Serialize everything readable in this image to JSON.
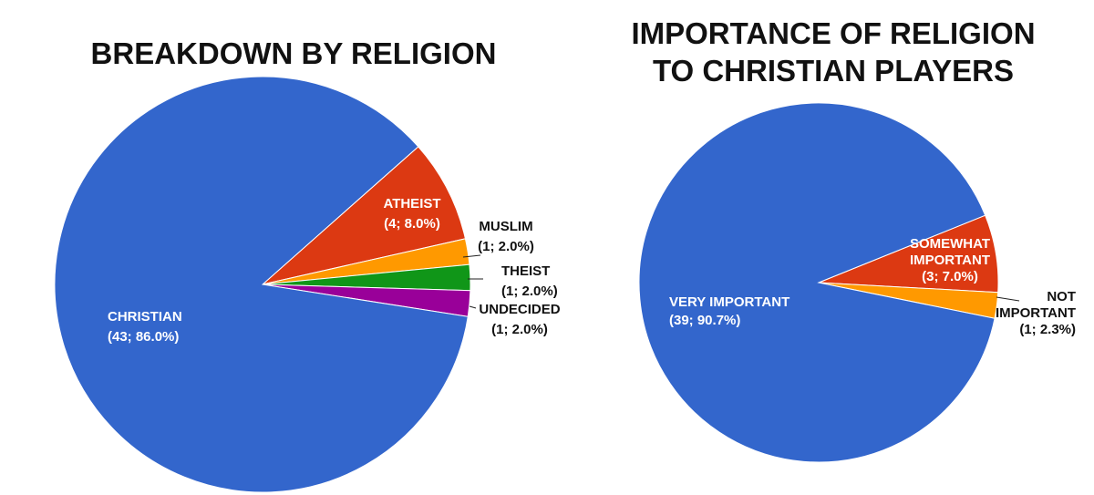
{
  "chart_data": [
    {
      "type": "pie",
      "title": "BREAKDOWN BY RELIGION",
      "slices": [
        {
          "name": "CHRISTIAN",
          "value": 43,
          "percent": "86.0%",
          "label_line2": "(43; 86.0%)",
          "color": "#3366CC"
        },
        {
          "name": "ATHEIST",
          "value": 4,
          "percent": "8.0%",
          "label_line2": "(4; 8.0%)",
          "color": "#DC3912"
        },
        {
          "name": "MUSLIM",
          "value": 1,
          "percent": "2.0%",
          "label_line2": "(1; 2.0%)",
          "color": "#FF9900"
        },
        {
          "name": "THEIST",
          "value": 1,
          "percent": "2.0%",
          "label_line2": "(1; 2.0%)",
          "color": "#109618"
        },
        {
          "name": "UNDECIDED",
          "value": 1,
          "percent": "2.0%",
          "label_line2": "(1; 2.0%)",
          "color": "#990099"
        }
      ]
    },
    {
      "type": "pie",
      "title": [
        "IMPORTANCE OF RELIGION",
        "TO CHRISTIAN PLAYERS"
      ],
      "slices": [
        {
          "name": "VERY IMPORTANT",
          "value": 39,
          "percent": "90.7%",
          "label_line2": "(39; 90.7%)",
          "color": "#3366CC"
        },
        {
          "name": "SOMEWHAT IMPORTANT",
          "name_lines": [
            "SOMEWHAT",
            "IMPORTANT"
          ],
          "value": 3,
          "percent": "7.0%",
          "label_line2": "(3; 7.0%)",
          "color": "#DC3912"
        },
        {
          "name": "NOT IMPORTANT",
          "name_lines": [
            "NOT",
            "IMPORTANT"
          ],
          "value": 1,
          "percent": "2.3%",
          "label_line2": "(1; 2.3%)",
          "color": "#FF9900"
        }
      ]
    }
  ]
}
